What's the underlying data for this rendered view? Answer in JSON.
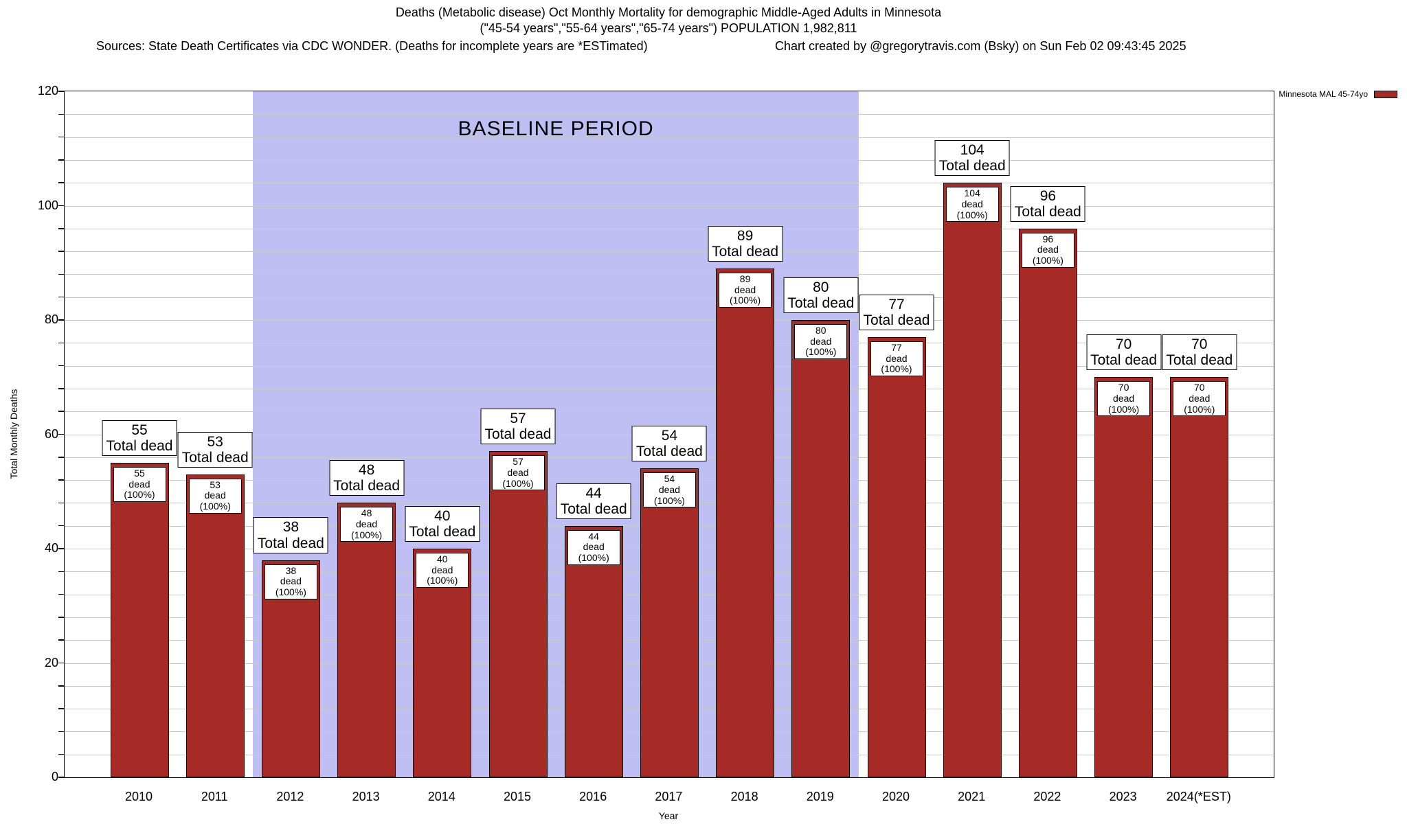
{
  "header": {
    "title_line1": "Deaths (Metabolic disease) Oct Monthly Mortality for demographic Middle-Aged Adults in Minnesota",
    "title_line2": "(\"45-54 years\",\"55-64 years\",\"65-74 years\") POPULATION 1,982,811",
    "sources_left": "Sources: State Death Certificates via CDC WONDER. (Deaths for incomplete years are *ESTimated)",
    "credit_right": "Chart created by @gregorytravis.com (Bsky) on Sun Feb 02 09:43:45 2025"
  },
  "chart_data": {
    "type": "bar",
    "title": "Deaths (Metabolic disease) Oct Monthly Mortality for demographic Middle-Aged Adults in Minnesota",
    "subtitle": "(\"45-54 years\",\"55-64 years\",\"65-74 years\") POPULATION 1,982,811",
    "categories": [
      "2010",
      "2011",
      "2012",
      "2013",
      "2014",
      "2015",
      "2016",
      "2017",
      "2018",
      "2019",
      "2020",
      "2021",
      "2022",
      "2023",
      "2024(*EST)"
    ],
    "values": [
      55,
      53,
      38,
      48,
      40,
      57,
      44,
      54,
      89,
      80,
      77,
      104,
      96,
      70,
      70
    ],
    "series_name": "Minnesota MAL 45-74yo",
    "xlabel": "Year",
    "ylabel": "Total Monthly Deaths",
    "ylim": [
      0,
      120
    ],
    "yticks_major": [
      0,
      20,
      40,
      60,
      80,
      100,
      120
    ],
    "minor_grid_step": 4,
    "grid": "horizontal",
    "bar_color": "#A62B27",
    "bar_outer_label_suffix": "Total dead",
    "bar_inner_label_suffix": "dead (100%)",
    "baseline_region": {
      "label": "BASELINE PERIOD",
      "from_category": "2012",
      "to_category": "2019",
      "color": "#BFBFF4"
    },
    "legend": {
      "position": "top-right",
      "label": "Minnesota MAL 45-74yo",
      "swatch_color": "#A62B27"
    }
  }
}
